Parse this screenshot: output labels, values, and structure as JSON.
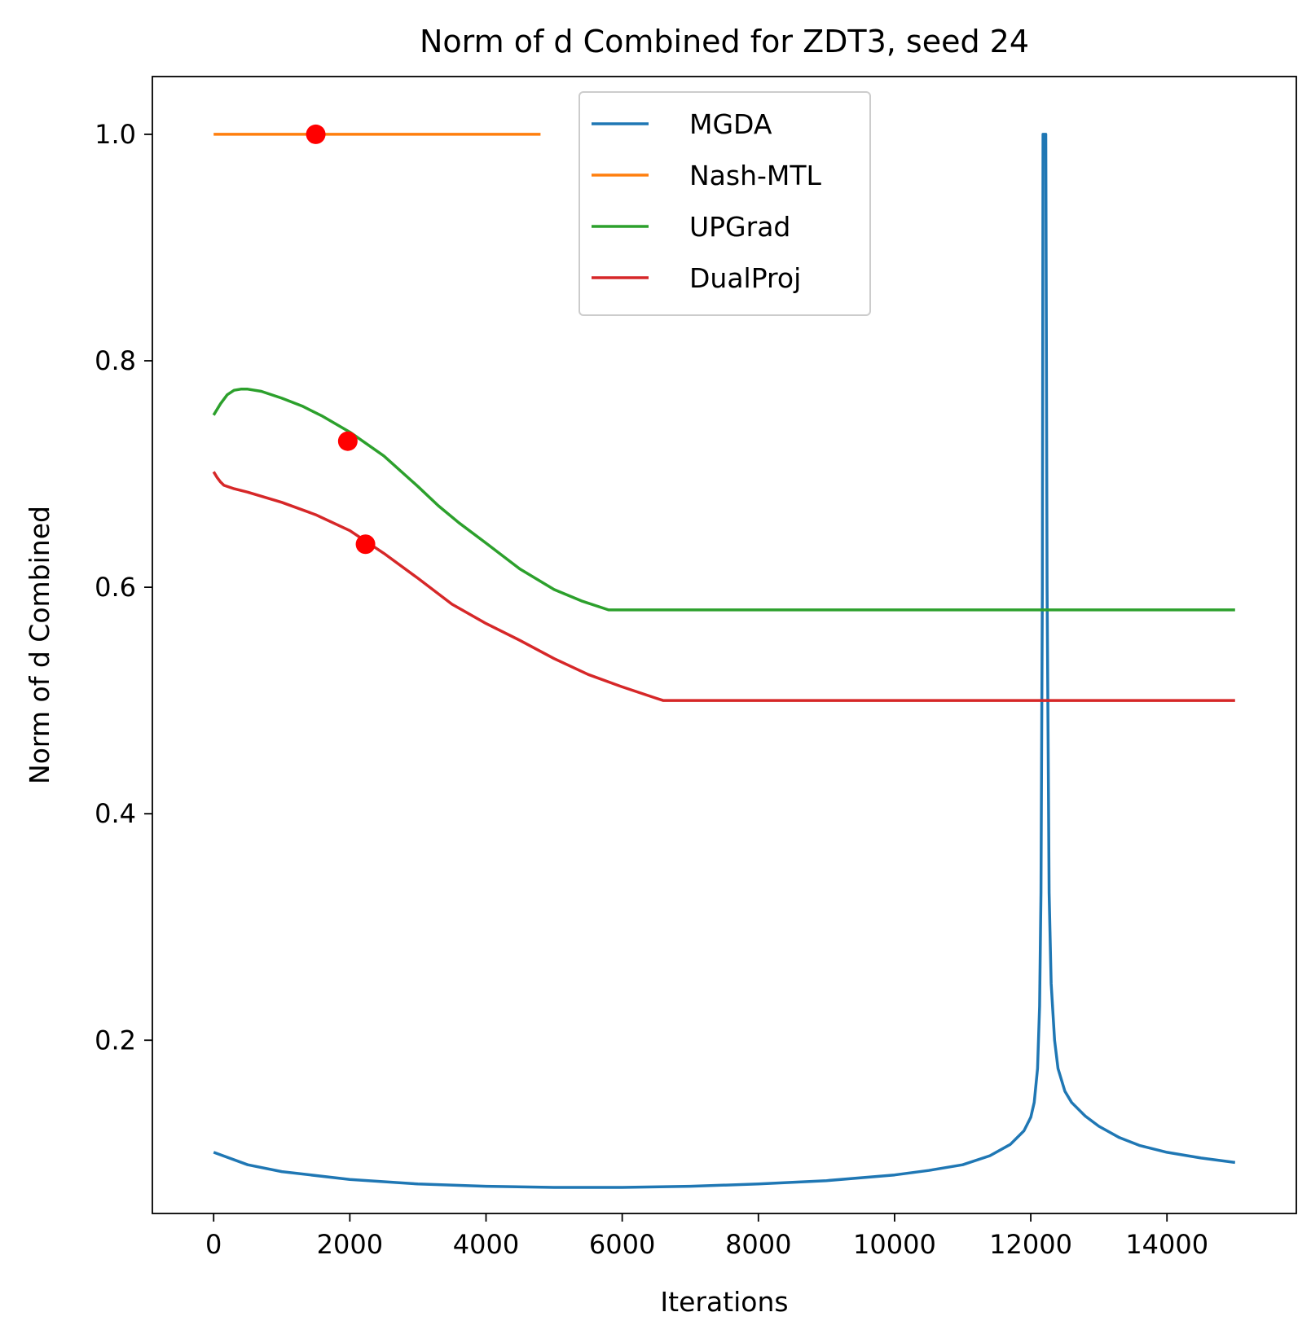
{
  "chart_data": {
    "type": "line",
    "title": "Norm of d Combined for ZDT3, seed 24",
    "xlabel": "Iterations",
    "ylabel": "Norm of d Combined",
    "xlim": [
      -900,
      15900
    ],
    "ylim": [
      0.047,
      1.051
    ],
    "xticks": [
      0,
      2000,
      4000,
      6000,
      8000,
      10000,
      12000,
      14000
    ],
    "yticks": [
      0.2,
      0.4,
      0.6,
      0.8,
      1.0
    ],
    "xtick_labels": [
      "0",
      "2000",
      "4000",
      "6000",
      "8000",
      "10000",
      "12000",
      "14000"
    ],
    "ytick_labels": [
      "0.2",
      "0.4",
      "0.6",
      "0.8",
      "1.0"
    ],
    "grid": false,
    "legend_position": "top-center",
    "series": [
      {
        "name": "MGDA",
        "color": "#1f77b4",
        "x": [
          0,
          500,
          1000,
          2000,
          3000,
          4000,
          5000,
          6000,
          7000,
          8000,
          9000,
          10000,
          10500,
          11000,
          11400,
          11700,
          11900,
          12000,
          12050,
          12100,
          12130,
          12150,
          12170,
          12180,
          12190,
          12200,
          12210,
          12220,
          12240,
          12270,
          12300,
          12350,
          12400,
          12500,
          12600,
          12800,
          13000,
          13300,
          13600,
          14000,
          14500,
          15000
        ],
        "y": [
          0.101,
          0.09,
          0.084,
          0.077,
          0.073,
          0.071,
          0.07,
          0.07,
          0.071,
          0.073,
          0.076,
          0.081,
          0.085,
          0.09,
          0.098,
          0.108,
          0.12,
          0.132,
          0.145,
          0.175,
          0.23,
          0.33,
          0.6,
          1.0,
          1.0,
          1.0,
          1.0,
          1.0,
          0.6,
          0.33,
          0.25,
          0.2,
          0.175,
          0.155,
          0.145,
          0.133,
          0.124,
          0.114,
          0.107,
          0.101,
          0.096,
          0.092
        ]
      },
      {
        "name": "Nash-MTL",
        "color": "#ff7f0e",
        "x": [
          0,
          4800
        ],
        "y": [
          1.0,
          1.0
        ]
      },
      {
        "name": "UPGrad",
        "color": "#2ca02c",
        "x": [
          0,
          100,
          200,
          300,
          400,
          500,
          700,
          1000,
          1300,
          1600,
          2000,
          2500,
          3000,
          3300,
          3600,
          4000,
          4500,
          5000,
          5400,
          5700,
          5800,
          6000,
          8000,
          10000,
          12000,
          15000
        ],
        "y": [
          0.752,
          0.762,
          0.77,
          0.774,
          0.775,
          0.775,
          0.773,
          0.767,
          0.76,
          0.751,
          0.737,
          0.716,
          0.689,
          0.672,
          0.657,
          0.639,
          0.616,
          0.598,
          0.588,
          0.582,
          0.58,
          0.58,
          0.58,
          0.58,
          0.58,
          0.58
        ]
      },
      {
        "name": "DualProj",
        "color": "#d62728",
        "x": [
          0,
          50,
          100,
          150,
          300,
          500,
          1000,
          1500,
          2000,
          2500,
          3000,
          3500,
          4000,
          4500,
          5000,
          5500,
          6000,
          6500,
          6600,
          7000,
          10000,
          15000
        ],
        "y": [
          0.702,
          0.697,
          0.693,
          0.69,
          0.687,
          0.684,
          0.675,
          0.664,
          0.65,
          0.63,
          0.608,
          0.585,
          0.568,
          0.553,
          0.537,
          0.523,
          0.512,
          0.502,
          0.5,
          0.5,
          0.5,
          0.5
        ]
      }
    ],
    "markers": [
      {
        "series": "Nash-MTL",
        "x": 1500,
        "y": 1.0,
        "color": "#ff0000"
      },
      {
        "series": "UPGrad",
        "x": 1970,
        "y": 0.729,
        "color": "#ff0000"
      },
      {
        "series": "DualProj",
        "x": 2230,
        "y": 0.638,
        "color": "#ff0000"
      }
    ]
  }
}
